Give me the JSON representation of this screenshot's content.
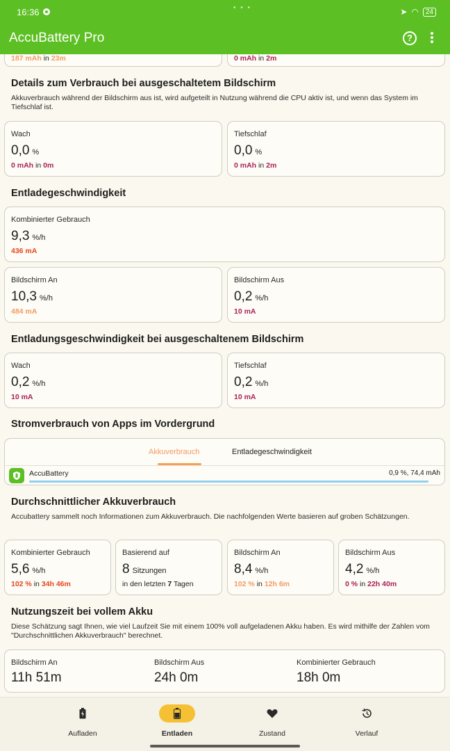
{
  "status_bar": {
    "time": "16:36",
    "battery": "24"
  },
  "app_bar": {
    "title": "AccuBattery Pro",
    "help_icon": "help-circle-icon",
    "menu_icon": "more-vert-icon"
  },
  "top_partial": {
    "left": {
      "value": "187 mAh",
      "in": "in",
      "time": "23m"
    },
    "right": {
      "value": "0 mAh",
      "in": "in",
      "time": "2m"
    }
  },
  "screen_off_usage": {
    "title": "Details zum Verbrauch bei ausgeschaltetem Bildschirm",
    "desc": "Akkuverbrauch während der Bildschirm aus ist, wird aufgeteilt in Nutzung während die CPU aktiv ist, und wenn das System im Tiefschlaf ist.",
    "awake": {
      "label": "Wach",
      "value": "0,0",
      "unit": "%",
      "mah": "0 mAh",
      "in": "in",
      "time": "0m"
    },
    "deep_sleep": {
      "label": "Tiefschlaf",
      "value": "0,0",
      "unit": "%",
      "mah": "0 mAh",
      "in": "in",
      "time": "2m"
    }
  },
  "discharge_speed": {
    "title": "Entladegeschwindigkeit",
    "combined": {
      "label": "Kombinierter Gebrauch",
      "value": "9,3",
      "unit": "%/h",
      "ma": "436 mA"
    },
    "screen_on": {
      "label": "Bildschirm An",
      "value": "10,3",
      "unit": "%/h",
      "ma": "484 mA"
    },
    "screen_off": {
      "label": "Bildschirm Aus",
      "value": "0,2",
      "unit": "%/h",
      "ma": "10 mA"
    }
  },
  "screen_off_speed": {
    "title": "Entladungsgeschwindigkeit bei ausgeschaltenem Bildschirm",
    "awake": {
      "label": "Wach",
      "value": "0,2",
      "unit": "%/h",
      "ma": "10 mA"
    },
    "deep_sleep": {
      "label": "Tiefschlaf",
      "value": "0,2",
      "unit": "%/h",
      "ma": "10 mA"
    }
  },
  "foreground_apps": {
    "title": "Stromverbrauch von Apps im Vordergrund",
    "tabs": [
      "Akkuverbrauch",
      "Entladegeschwindigkeit"
    ],
    "active_tab": 0,
    "apps": [
      {
        "name": "AccuBattery",
        "stats": "0,9 %, 74,4 mAh",
        "bar_fraction": 0.95,
        "icon": "accubattery-app-icon"
      }
    ]
  },
  "avg_usage": {
    "title": "Durchschnittlicher Akkuverbrauch",
    "desc": "Accubattery sammelt noch Informationen zum Akkuverbrauch. Die nachfolgenden Werte basieren auf groben Schätzungen.",
    "combined": {
      "label": "Kombinierter Gebrauch",
      "value": "5,6",
      "unit": "%/h",
      "pct": "102 %",
      "in": "in",
      "time": "34h 46m"
    },
    "based_on": {
      "label": "Basierend auf",
      "value": "8",
      "unit": "Sitzungen",
      "pre": "in den letzten",
      "days": "7",
      "post": "Tagen"
    },
    "screen_on": {
      "label": "Bildschirm An",
      "value": "8,4",
      "unit": "%/h",
      "pct": "102 %",
      "in": "in",
      "time": "12h 6m"
    },
    "screen_off": {
      "label": "Bildschirm Aus",
      "value": "4,2",
      "unit": "%/h",
      "pct": "0 %",
      "in": "in",
      "time": "22h 40m"
    }
  },
  "full_runtime": {
    "title": "Nutzungszeit bei vollem Akku",
    "desc": "Diese Schätzung sagt Ihnen, wie viel Laufzeit Sie mit einem 100% voll aufgeladenen Akku haben. Es wird mithilfe der Zahlen vom \"Durchschnittlichen Akkuverbrauch\" berechnet.",
    "screen_on": {
      "label": "Bildschirm An",
      "value": "11h 51m"
    },
    "screen_off": {
      "label": "Bildschirm Aus",
      "value": "24h 0m"
    },
    "combined": {
      "label": "Kombinierter Gebrauch",
      "value": "18h 0m"
    }
  },
  "bottom_nav": [
    {
      "label": "Aufladen",
      "icon": "battery-charging-icon",
      "active": false
    },
    {
      "label": "Entladen",
      "icon": "battery-discharge-icon",
      "active": true
    },
    {
      "label": "Zustand",
      "icon": "heart-icon",
      "active": false
    },
    {
      "label": "Verlauf",
      "icon": "history-icon",
      "active": false
    }
  ],
  "colors": {
    "app_bar": "#5cbf23",
    "background": "#fbf9ef",
    "magenta": "#a91f58",
    "red_orange": "#e6461f",
    "orange": "#f39a64",
    "tab_indicator": "#f5a054",
    "nav_active": "#f6c035",
    "app_bar_fill": "#8fd0ef"
  }
}
